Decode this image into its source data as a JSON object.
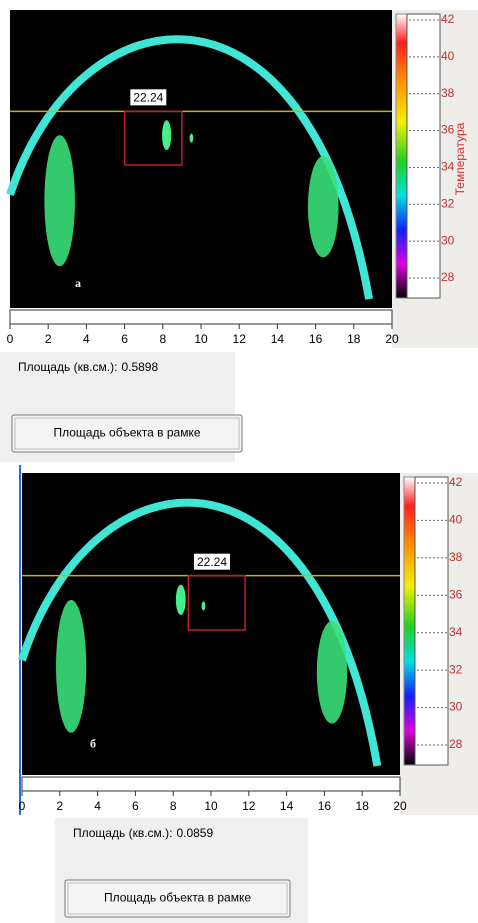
{
  "panels": [
    {
      "marker_value": 22.24,
      "letter": "а",
      "scale_ticks": [
        42,
        40,
        38,
        36,
        34,
        32,
        30,
        28
      ],
      "scale_title": "Температура",
      "x_ticks": [
        0,
        2,
        4,
        6,
        8,
        10,
        12,
        14,
        16,
        18,
        20
      ],
      "area_label": "Площадь (кв.см.):",
      "area_value": 0.5898,
      "button": "Площадь объекта в рамке"
    },
    {
      "marker_value": 22.24,
      "letter": "б",
      "scale_ticks": [
        42,
        40,
        38,
        36,
        34,
        32,
        30,
        28
      ],
      "x_ticks": [
        0,
        2,
        4,
        6,
        8,
        10,
        12,
        14,
        16,
        18,
        20
      ],
      "area_label": "Площадь (кв.см.):",
      "area_value": 0.0859,
      "button": "Площадь объекта в рамке"
    }
  ]
}
